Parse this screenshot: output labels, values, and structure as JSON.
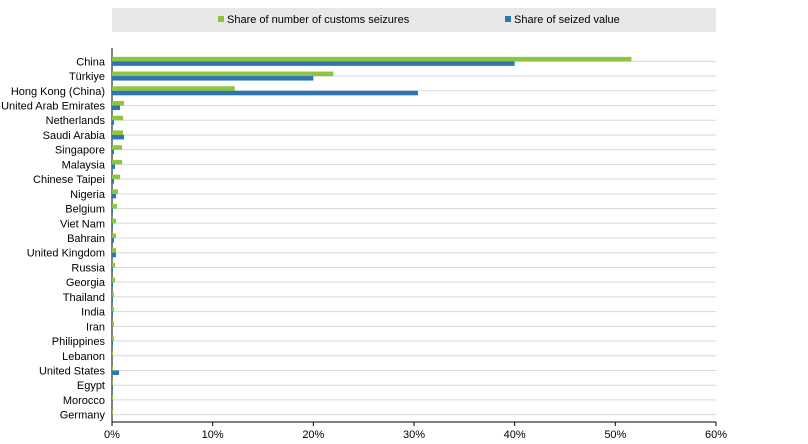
{
  "chart_data": {
    "type": "bar",
    "orientation": "horizontal",
    "categories": [
      "China",
      "Türkiye",
      "Hong Kong (China)",
      "United Arab Emirates",
      "Netherlands",
      "Saudi Arabia",
      "Singapore",
      "Malaysia",
      "Chinese Taipei",
      "Nigeria",
      "Belgium",
      "Viet Nam",
      "Bahrain",
      "United Kingdom",
      "Russia",
      "Georgia",
      "Thailand",
      "India",
      "Iran",
      "Philippines",
      "Lebanon",
      "United States",
      "Egypt",
      "Morocco",
      "Germany"
    ],
    "series": [
      {
        "name": "Share of number of customs seizures",
        "color": "#8cc63e",
        "values": [
          51.6,
          22.0,
          12.2,
          1.2,
          1.1,
          1.1,
          1.0,
          1.0,
          0.8,
          0.6,
          0.5,
          0.4,
          0.4,
          0.4,
          0.3,
          0.3,
          0.2,
          0.2,
          0.2,
          0.2,
          0.1,
          0.1,
          0.1,
          0.1,
          0.1
        ]
      },
      {
        "name": "Share of seized value",
        "color": "#2e75b6",
        "values": [
          40.0,
          20.0,
          30.4,
          0.8,
          0.2,
          1.2,
          0.2,
          0.3,
          0.2,
          0.4,
          0.1,
          0.1,
          0.2,
          0.4,
          0.1,
          0.1,
          0.1,
          0.1,
          0.0,
          0.1,
          0.0,
          0.7,
          0.1,
          0.0,
          0.0
        ]
      }
    ],
    "xlim": [
      0,
      60
    ],
    "xticks": [
      "0%",
      "10%",
      "20%",
      "30%",
      "40%",
      "50%",
      "60%"
    ],
    "grid": true,
    "legend_position": "top"
  }
}
